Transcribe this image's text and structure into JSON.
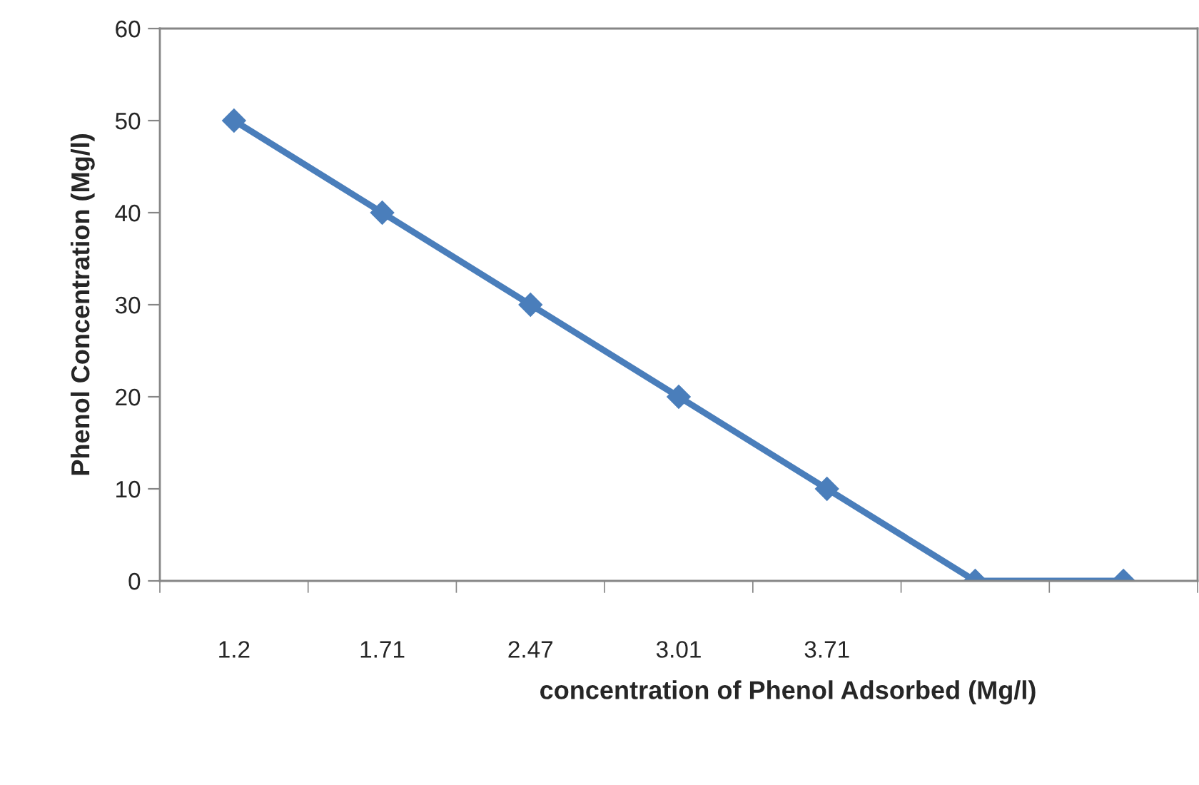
{
  "chart_data": {
    "type": "line",
    "xlabel": "concentration of Phenol Adsorbed (Mg/l)",
    "ylabel": "Phenol Concentration (Mg/l)",
    "categories": [
      "1.2",
      "1.71",
      "2.47",
      "3.01",
      "3.71",
      null,
      null
    ],
    "series": [
      {
        "color": "#4a7ebb",
        "values": [
          50,
          40,
          30,
          20,
          10,
          0,
          0
        ]
      }
    ],
    "ylim": [
      0,
      60
    ],
    "yticks": [
      0,
      10,
      20,
      30,
      40,
      50,
      60
    ],
    "grid": false,
    "marker": "diamond",
    "line_style": "solid"
  }
}
